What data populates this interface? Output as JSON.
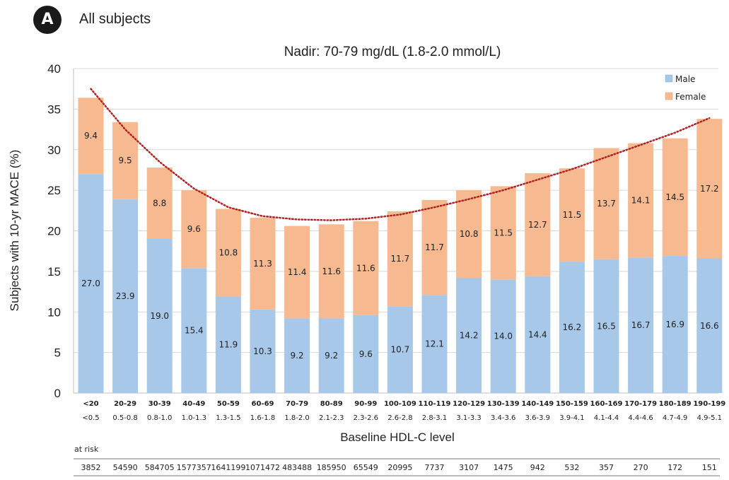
{
  "panel": {
    "badge": "A",
    "title": "All subjects"
  },
  "chart_data": {
    "type": "bar",
    "stacked": true,
    "title": "Nadir: 70-79 mg/dL (1.8-2.0 mmol/L)",
    "xlabel": "Baseline HDL-C level",
    "ylabel": "Subjects with 10-yr MACE (%)",
    "ylim": [
      0,
      40
    ],
    "yticks": [
      "0",
      "5",
      "10",
      "15",
      "20",
      "25",
      "30",
      "35",
      "40"
    ],
    "grid": true,
    "legend_position": "top-right",
    "categories": [
      "<20",
      "20-29",
      "30-39",
      "40-49",
      "50-59",
      "60-69",
      "70-79",
      "80-89",
      "90-99",
      "100-109",
      "110-119",
      "120-129",
      "130-139",
      "140-149",
      "150-159",
      "160-169",
      "170-179",
      "180-189",
      "190-199"
    ],
    "categories_mmol": [
      "<0.5",
      "0.5-0.8",
      "0.8-1.0",
      "1.0-1.3",
      "1.3-1.5",
      "1.6-1.8",
      "1.8-2.0",
      "2.1-2.3",
      "2.3-2.6",
      "2.6-2.8",
      "2.8-3.1",
      "3.1-3.3",
      "3.4-3.6",
      "3.6-3.9",
      "3.9-4.1",
      "4.1-4.4",
      "4.4-4.6",
      "4.7-4.9",
      "4.9-5.1"
    ],
    "series": [
      {
        "name": "Male",
        "color": "#a7c8e9",
        "values": [
          27.0,
          23.9,
          19.0,
          15.4,
          11.9,
          10.3,
          9.2,
          9.2,
          9.6,
          10.7,
          12.1,
          14.2,
          14.0,
          14.4,
          16.2,
          16.5,
          16.7,
          16.9,
          16.6
        ],
        "labels": [
          "27.0",
          "23.9",
          "19.0",
          "15.4",
          "11.9",
          "10.3",
          "9.2",
          "9.2",
          "9.6",
          "10.7",
          "12.1",
          "14.2",
          "14.0",
          "14.4",
          "16.2",
          "16.5",
          "16.7",
          "16.9",
          "16.6"
        ]
      },
      {
        "name": "Female",
        "color": "#f6b990",
        "values": [
          9.4,
          9.5,
          8.8,
          9.6,
          10.8,
          11.3,
          11.4,
          11.6,
          11.6,
          11.7,
          11.7,
          10.8,
          11.5,
          12.7,
          11.5,
          13.7,
          14.1,
          14.5,
          17.2
        ],
        "labels": [
          "9.4",
          "9.5",
          "8.8",
          "9.6",
          "10.8",
          "11.3",
          "11.4",
          "11.6",
          "11.6",
          "11.7",
          "11.7",
          "10.8",
          "11.5",
          "12.7",
          "11.5",
          "13.7",
          "14.1",
          "14.5",
          "17.2"
        ]
      }
    ],
    "trendline": {
      "style": "dotted",
      "color": "#b22222",
      "values": [
        37.5,
        32.5,
        28.5,
        25.2,
        22.9,
        21.8,
        21.4,
        21.3,
        21.5,
        22.0,
        22.9,
        23.9,
        25.0,
        26.3,
        27.6,
        29.1,
        30.6,
        32.1,
        33.9
      ]
    },
    "at_risk": {
      "label": "at risk",
      "values": [
        "3852",
        "54590",
        "584705",
        "1577357",
        "1641199",
        "1071472",
        "483488",
        "185950",
        "65549",
        "20995",
        "7737",
        "3107",
        "1475",
        "942",
        "532",
        "357",
        "270",
        "172",
        "151"
      ]
    }
  }
}
